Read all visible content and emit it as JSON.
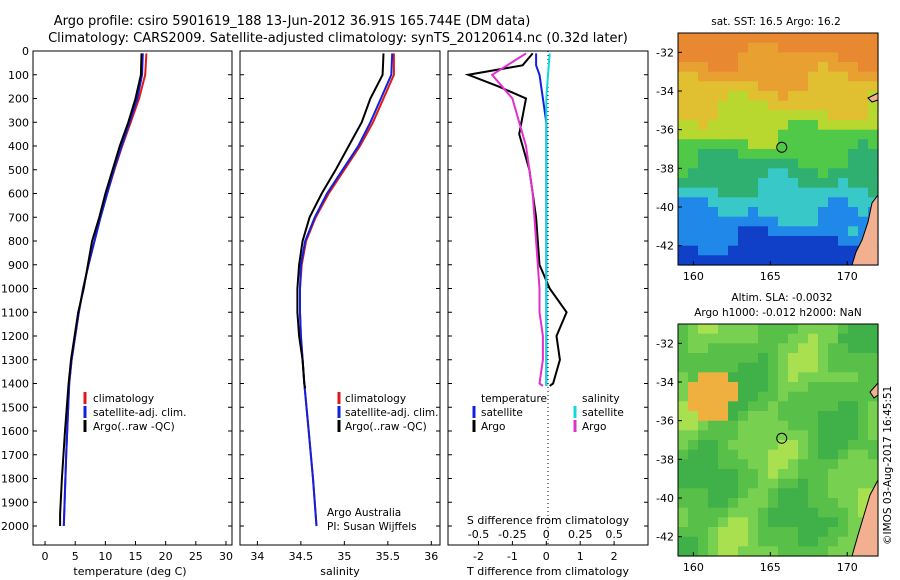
{
  "header": {
    "line1": "Argo profile: csiro 5901619_188 13-Jun-2012 36.91S 165.744E (DM data)",
    "line2": "Climatology: CARS2009. Satellite-adjusted climatology: synTS_20120614.nc (0.32d later)"
  },
  "chart_data": [
    {
      "type": "line",
      "id": "temperature",
      "xlabel": "temperature (deg C)",
      "ylabel": "",
      "xlim": [
        -2,
        31
      ],
      "ylim": [
        2080,
        0
      ],
      "xticks": [
        0,
        5,
        10,
        15,
        20,
        25,
        30
      ],
      "yticks": [
        0,
        100,
        200,
        300,
        400,
        500,
        600,
        700,
        800,
        900,
        1000,
        1100,
        1200,
        1300,
        1400,
        1500,
        1600,
        1700,
        1800,
        1900,
        2000
      ],
      "legend": [
        "climatology",
        "satellite-adj. clim.",
        "Argo(..raw -QC)"
      ],
      "legend_position": "bottom-center",
      "series": [
        {
          "name": "climatology",
          "color": "#e01818",
          "x": [
            16.8,
            16.6,
            15.6,
            14.2,
            12.8,
            11.5,
            10.3,
            9.2,
            8.2,
            7.2,
            6.3,
            5.6,
            5.0,
            4.4,
            4.0,
            3.5,
            3.1
          ],
          "y": [
            10,
            100,
            200,
            300,
            400,
            500,
            600,
            700,
            800,
            900,
            1000,
            1100,
            1200,
            1300,
            1400,
            1700,
            2000
          ]
        },
        {
          "name": "satellite-adj. clim.",
          "color": "#1020e0",
          "x": [
            16.2,
            16.1,
            15.3,
            14.0,
            12.7,
            11.4,
            10.3,
            9.2,
            8.2,
            7.2,
            6.3,
            5.6,
            5.0,
            4.4,
            4.0,
            3.5,
            3.1
          ],
          "y": [
            10,
            100,
            200,
            300,
            400,
            500,
            600,
            700,
            800,
            900,
            1000,
            1100,
            1200,
            1300,
            1400,
            1700,
            2000
          ]
        },
        {
          "name": "Argo(..raw -QC)",
          "color": "#000000",
          "x": [
            16.0,
            15.9,
            15.0,
            13.8,
            12.4,
            11.2,
            10.0,
            9.0,
            7.8,
            7.1,
            6.4,
            5.5,
            4.9,
            4.3,
            3.9,
            3.3,
            2.8,
            2.5,
            2.5
          ],
          "y": [
            10,
            100,
            200,
            300,
            400,
            500,
            600,
            700,
            800,
            900,
            1000,
            1100,
            1200,
            1300,
            1400,
            1600,
            1800,
            1950,
            2000
          ]
        }
      ]
    },
    {
      "type": "line",
      "id": "salinity",
      "xlabel": "salinity",
      "xlim": [
        33.8,
        36.1
      ],
      "ylim": [
        2080,
        0
      ],
      "xticks": [
        34,
        34.5,
        35,
        35.5,
        36
      ],
      "legend": [
        "climatology",
        "satellite-adj. clim.",
        "Argo(..raw -QC)"
      ],
      "legend_position": "bottom-right",
      "annotation": [
        "Argo Australia",
        "PI: Susan Wijffels"
      ],
      "series": [
        {
          "name": "climatology",
          "color": "#e01818",
          "x": [
            35.57,
            35.57,
            35.45,
            35.33,
            35.18,
            35.0,
            34.82,
            34.67,
            34.56,
            34.51,
            34.49,
            34.49,
            34.5,
            34.52,
            34.54,
            34.59,
            34.64,
            34.68
          ],
          "y": [
            10,
            100,
            200,
            300,
            400,
            500,
            600,
            700,
            800,
            900,
            1000,
            1100,
            1200,
            1300,
            1400,
            1600,
            1800,
            2000
          ]
        },
        {
          "name": "satellite-adj. clim.",
          "color": "#1020e0",
          "x": [
            35.55,
            35.54,
            35.42,
            35.3,
            35.16,
            34.98,
            34.8,
            34.66,
            34.55,
            34.5,
            34.49,
            34.49,
            34.5,
            34.52,
            34.54,
            34.59,
            34.64,
            34.68
          ],
          "y": [
            10,
            100,
            200,
            300,
            400,
            500,
            600,
            700,
            800,
            900,
            1000,
            1100,
            1200,
            1300,
            1400,
            1600,
            1800,
            2000
          ]
        },
        {
          "name": "Argo(..raw -QC)",
          "color": "#000000",
          "x": [
            35.45,
            35.44,
            35.3,
            35.2,
            35.05,
            34.9,
            34.74,
            34.6,
            34.52,
            34.48,
            34.46,
            34.46,
            34.48,
            34.52,
            34.54,
            34.55
          ],
          "y": [
            10,
            100,
            200,
            300,
            400,
            500,
            600,
            700,
            800,
            900,
            1000,
            1100,
            1200,
            1300,
            1400,
            1420
          ]
        }
      ]
    },
    {
      "type": "line",
      "id": "difference",
      "xlabel": "T difference from climatology",
      "top_label": "S difference from climatology",
      "xlim": [
        -2.9,
        3.0
      ],
      "ylim": [
        2080,
        0
      ],
      "xticks": [
        -2,
        -1,
        0,
        1,
        2
      ],
      "top_ticks": [
        "-0.5",
        "-0.25",
        "0",
        "0.25",
        "0.5"
      ],
      "top_tick_positions_T": [
        -2,
        -1,
        0,
        1,
        2
      ],
      "legend_left": {
        "title": "temperature",
        "items": [
          "satellite",
          "Argo"
        ]
      },
      "legend_right": {
        "title": "salinity",
        "items": [
          "satellite",
          "Argo"
        ]
      },
      "series": [
        {
          "name": "temperature satellite",
          "color": "#1020e0",
          "x": [
            -0.3,
            -0.3,
            -0.2,
            -0.1,
            0,
            0,
            0,
            0,
            0,
            0,
            0,
            0,
            0,
            0
          ],
          "y": [
            10,
            60,
            100,
            200,
            300,
            400,
            600,
            800,
            1000,
            1100,
            1200,
            1300,
            1400,
            1410
          ]
        },
        {
          "name": "temperature Argo",
          "color": "#000000",
          "x": [
            -0.4,
            -0.7,
            -2.3,
            -1.4,
            -0.6,
            -0.8,
            -0.5,
            -0.3,
            -0.2,
            0.1,
            0.6,
            0.3,
            0.4,
            0.2,
            0.1
          ],
          "y": [
            10,
            60,
            100,
            150,
            200,
            350,
            500,
            700,
            900,
            1000,
            1100,
            1200,
            1300,
            1400,
            1410
          ]
        },
        {
          "name": "salinity satellite",
          "color": "#10d8e0",
          "x": [
            0.1,
            0.05,
            0,
            0,
            0,
            0,
            0,
            0,
            0,
            0,
            0,
            0,
            0
          ],
          "y": [
            10,
            100,
            200,
            300,
            400,
            600,
            800,
            1000,
            1100,
            1200,
            1300,
            1400,
            1410
          ]
        },
        {
          "name": "salinity Argo",
          "color": "#e030d0",
          "x": [
            -0.6,
            -1.6,
            -1.0,
            -0.8,
            -0.6,
            -0.4,
            -0.3,
            -0.2,
            -0.2,
            -0.1,
            -0.1,
            -0.2,
            -0.1
          ],
          "y": [
            10,
            100,
            200,
            300,
            400,
            600,
            800,
            1000,
            1100,
            1200,
            1300,
            1400,
            1410
          ]
        }
      ]
    },
    {
      "type": "heatmap",
      "id": "sst-map",
      "title": "sat. SST: 16.5  Argo: 16.2",
      "xlim": [
        159,
        172
      ],
      "ylim": [
        -43,
        -31
      ],
      "xticks": [
        160,
        165,
        170
      ],
      "yticks": [
        -32,
        -34,
        -36,
        -38,
        -40,
        -42
      ],
      "marker": {
        "lon": 165.744,
        "lat": -36.91
      },
      "colors": [
        "#e88830",
        "#e8a030",
        "#e0c030",
        "#b8d830",
        "#50c848",
        "#30b070",
        "#38c8c8",
        "#2088e8",
        "#1040c8"
      ]
    },
    {
      "type": "heatmap",
      "id": "sla-map",
      "title": "Altim. SLA: -0.0032",
      "subtitle": "Argo h1000: -0.012  h2000: NaN",
      "xlim": [
        159,
        172
      ],
      "ylim": [
        -43,
        -31
      ],
      "xticks": [
        160,
        165,
        170
      ],
      "yticks": [
        -32,
        -34,
        -36,
        -38,
        -40,
        -42
      ],
      "marker": {
        "lon": 165.744,
        "lat": -36.91
      },
      "colors": [
        "#40b048",
        "#58c048",
        "#78d050",
        "#a8e050",
        "#e8e040",
        "#f0b040"
      ]
    }
  ],
  "credit": "©IMOS 03-Aug-2017 16:45:51"
}
